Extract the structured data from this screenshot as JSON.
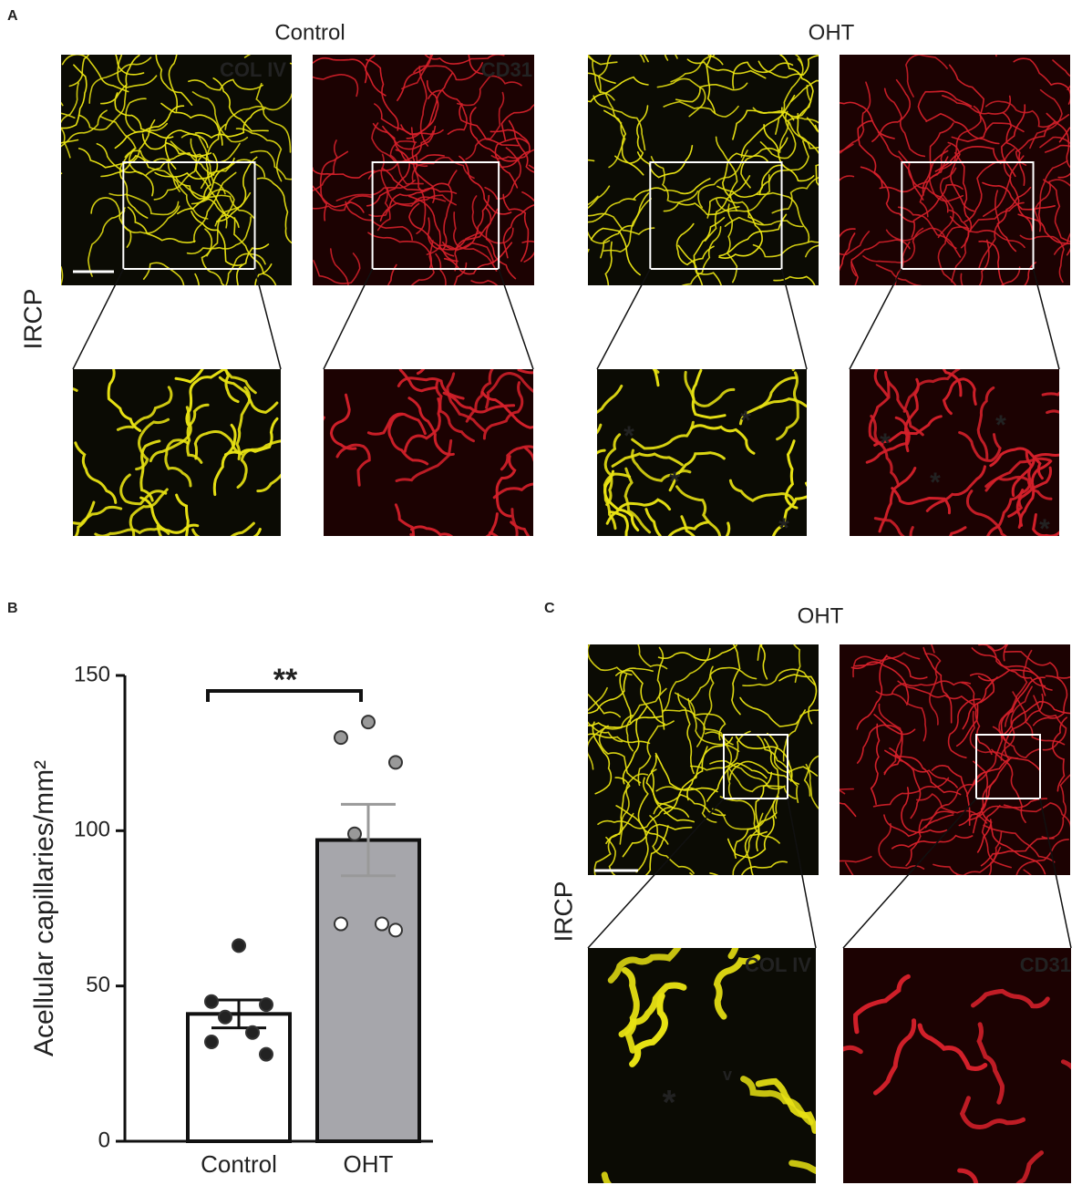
{
  "panel_a": {
    "label": "A",
    "groups": [
      "Control",
      "OHT"
    ],
    "side_label": "IRCP",
    "stains": [
      "COL IV",
      "CD31"
    ],
    "asterisks": [
      "*",
      "*",
      "*",
      "*",
      "*",
      "*",
      "*",
      "*"
    ]
  },
  "chart_data": {
    "type": "bar",
    "panel_label": "B",
    "categories": [
      "Control",
      "OHT"
    ],
    "values": [
      41,
      97
    ],
    "errors": [
      4.5,
      11.5
    ],
    "points": [
      [
        63,
        45,
        44,
        40,
        35,
        32,
        28
      ],
      [
        135,
        130,
        122,
        99,
        70,
        70,
        68
      ]
    ],
    "colors": [
      "#ffffff",
      "#a6a6ab"
    ],
    "ylabel": "Acellular capillaries/mm²",
    "ylim": [
      0,
      150
    ],
    "yticks": [
      0,
      50,
      100,
      150
    ],
    "significance": "**"
  },
  "panel_c": {
    "label": "C",
    "group": "OHT",
    "side_label": "IRCP",
    "stains": [
      "COL IV",
      "CD31"
    ],
    "asterisk": "*",
    "arrowhead": "v"
  }
}
